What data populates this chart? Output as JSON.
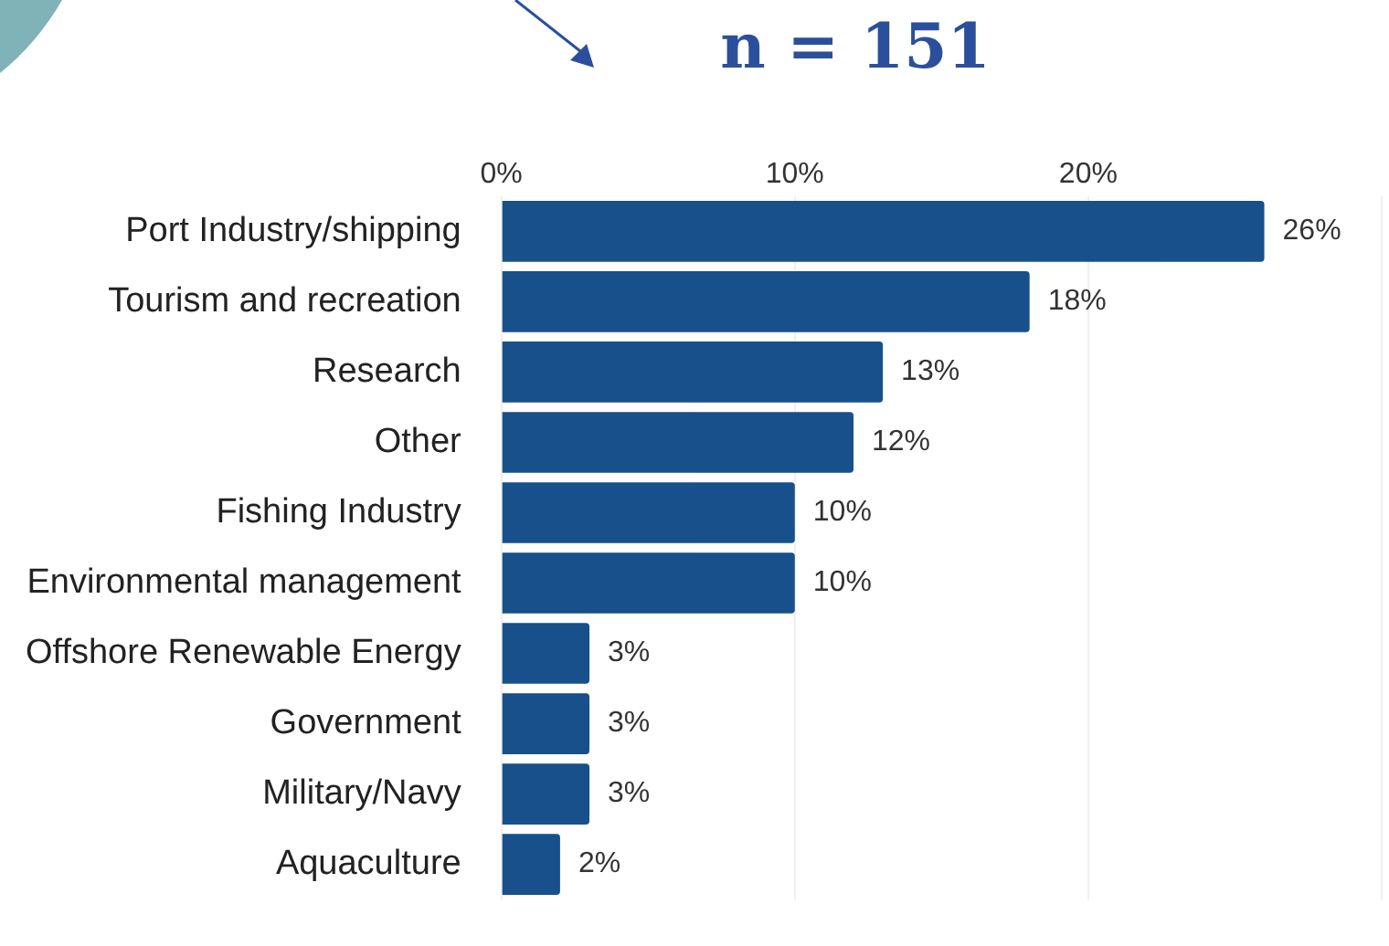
{
  "chart_data": {
    "type": "bar",
    "orientation": "horizontal",
    "title": "n = 151",
    "categories": [
      "Port Industry/shipping",
      "Tourism and recreation",
      "Research",
      "Other",
      "Fishing Industry",
      "Environmental management",
      "Offshore Renewable Energy",
      "Government",
      "Military/Navy",
      "Aquaculture"
    ],
    "values": [
      26,
      18,
      13,
      12,
      10,
      10,
      3,
      3,
      3,
      2
    ],
    "value_labels": [
      "26%",
      "18%",
      "13%",
      "12%",
      "10%",
      "10%",
      "3%",
      "3%",
      "3%",
      "2%"
    ],
    "color": "#17508a",
    "xlim": [
      0,
      30
    ],
    "xticks": [
      {
        "value": 0,
        "label": "0%"
      },
      {
        "value": 10,
        "label": "10%"
      },
      {
        "value": 20,
        "label": "20%"
      },
      {
        "value": 30,
        "label": null
      }
    ],
    "grid": "x"
  }
}
